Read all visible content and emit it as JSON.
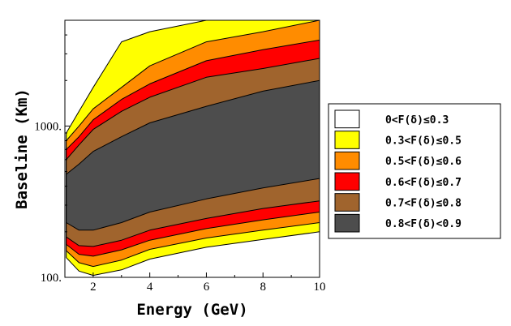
{
  "chart_data": {
    "type": "contour",
    "title": "",
    "xlabel": "Energy (GeV)",
    "ylabel": "Baseline (Km)",
    "xlim": [
      1,
      10
    ],
    "ylim": [
      100,
      5000
    ],
    "yscale": "log",
    "x_ticks": [
      {
        "value": 2,
        "label": "2"
      },
      {
        "value": 4,
        "label": "4"
      },
      {
        "value": 6,
        "label": "6"
      },
      {
        "value": 8,
        "label": "8"
      },
      {
        "value": 10,
        "label": "10"
      }
    ],
    "y_ticks": [
      {
        "value": 100,
        "label": "100."
      },
      {
        "value": 1000,
        "label": "1000."
      }
    ],
    "levels": [
      {
        "label": "0<F(δ)≤0.3",
        "color": "#ffffff",
        "min": 0.0,
        "max": 0.3
      },
      {
        "label": "0.3<F(δ)≤0.5",
        "color": "#ffff00",
        "min": 0.3,
        "max": 0.5
      },
      {
        "label": "0.5<F(δ)≤0.6",
        "color": "#ff8c00",
        "min": 0.5,
        "max": 0.6
      },
      {
        "label": "0.6<F(δ)≤0.7",
        "color": "#ff0000",
        "min": 0.6,
        "max": 0.7
      },
      {
        "label": "0.7<F(δ)≤0.8",
        "color": "#a0642d",
        "min": 0.7,
        "max": 0.8
      },
      {
        "label": "0.8<F(δ)<0.9",
        "color": "#4d4d4d",
        "min": 0.8,
        "max": 0.9
      }
    ],
    "legend_position": "right",
    "grid": false,
    "contour_boundaries": {
      "lower": {
        "x": [
          1.05,
          1.5,
          2,
          3,
          4,
          6,
          8,
          10
        ],
        "y_min_0.3": [
          135,
          110,
          103,
          112,
          132,
          158,
          178,
          200
        ],
        "y_min_0.5": [
          150,
          125,
          118,
          130,
          153,
          182,
          205,
          230
        ],
        "y_min_0.6": [
          165,
          142,
          138,
          152,
          176,
          210,
          240,
          270
        ],
        "y_min_0.7": [
          185,
          162,
          160,
          176,
          205,
          245,
          285,
          320
        ],
        "y_min_0.8": [
          230,
          205,
          205,
          230,
          270,
          330,
          390,
          450
        ]
      },
      "upper": {
        "x": [
          1.05,
          1.5,
          2,
          3,
          4,
          6,
          8,
          10
        ],
        "y_max_0.3": [
          900,
          1250,
          1800,
          3600,
          4200,
          5000,
          5000,
          5000
        ],
        "y_max_0.5": [
          800,
          1000,
          1300,
          1800,
          2500,
          3600,
          4200,
          5000
        ],
        "y_max_0.6": [
          700,
          850,
          1100,
          1500,
          1900,
          2700,
          3200,
          3700
        ],
        "y_max_0.7": [
          600,
          750,
          950,
          1250,
          1550,
          2100,
          2400,
          2800
        ],
        "y_max_0.8": [
          480,
          560,
          680,
          850,
          1050,
          1350,
          1700,
          2000
        ]
      }
    }
  }
}
